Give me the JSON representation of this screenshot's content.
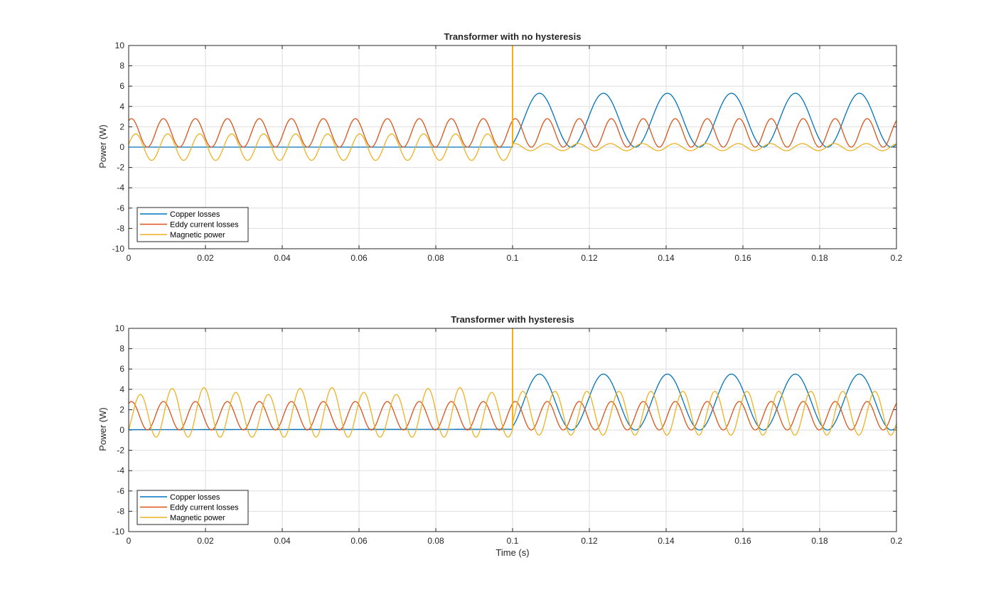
{
  "figure": {
    "background": "#ffffff"
  },
  "chart_data": [
    {
      "type": "line",
      "title": "Transformer with no hysteresis",
      "xlabel": "",
      "ylabel": "Power (W)",
      "xlim": [
        0,
        0.2
      ],
      "ylim": [
        -10,
        10
      ],
      "xticks": [
        "0",
        "0.02",
        "0.04",
        "0.06",
        "0.08",
        "0.1",
        "0.12",
        "0.14",
        "0.16",
        "0.18",
        "0.2"
      ],
      "yticks": [
        "-10",
        "-8",
        "-6",
        "-4",
        "-2",
        "0",
        "2",
        "4",
        "6",
        "8",
        "10"
      ],
      "grid": true,
      "legend_position": "bottom-left",
      "series": [
        {
          "name": "Copper losses",
          "color": "#0072BD",
          "description_values": {
            "t_lt_0.1": 0,
            "t_ge_0.1_min": 0,
            "t_ge_0.1_max": 5.3,
            "frequency_hz": 120
          }
        },
        {
          "name": "Eddy current losses",
          "color": "#D95319",
          "description_values": {
            "min": 0,
            "max": 2.8,
            "frequency_hz": 120
          }
        },
        {
          "name": "Magnetic power",
          "color": "#EDB120",
          "description_values": {
            "t_lt_0.1_min": -1.3,
            "t_lt_0.1_max": 1.3,
            "t_ge_0.1_min": -0.4,
            "t_ge_0.1_max": 0.4,
            "frequency_hz": 120,
            "spike_at": 0.1,
            "spike_peak": 10
          }
        }
      ],
      "legend": [
        "Copper losses",
        "Eddy current losses",
        "Magnetic power"
      ]
    },
    {
      "type": "line",
      "title": "Transformer with hysteresis",
      "xlabel": "Time (s)",
      "ylabel": "Power (W)",
      "xlim": [
        0,
        0.2
      ],
      "ylim": [
        -10,
        10
      ],
      "xticks": [
        "0",
        "0.02",
        "0.04",
        "0.06",
        "0.08",
        "0.1",
        "0.12",
        "0.14",
        "0.16",
        "0.18",
        "0.2"
      ],
      "yticks": [
        "-10",
        "-8",
        "-6",
        "-4",
        "-2",
        "0",
        "2",
        "4",
        "6",
        "8",
        "10"
      ],
      "grid": true,
      "legend_position": "bottom-left",
      "series": [
        {
          "name": "Copper losses",
          "color": "#0072BD",
          "description_values": {
            "t_lt_0.1": 0.05,
            "t_ge_0.1_min": 0,
            "t_ge_0.1_max": 5.5,
            "frequency_hz": 120
          }
        },
        {
          "name": "Eddy current losses",
          "color": "#D95319",
          "description_values": {
            "min": 0,
            "max": 2.8,
            "frequency_hz": 120
          }
        },
        {
          "name": "Magnetic power",
          "color": "#EDB120",
          "description_values": {
            "t_lt_0.1_min": -0.7,
            "t_lt_0.1_max": 4.8,
            "t_ge_0.1_min": -0.5,
            "t_ge_0.1_max": 3.8,
            "frequency_hz": 120,
            "spike_at": 0.1,
            "spike_peak": 10
          }
        }
      ],
      "legend": [
        "Copper losses",
        "Eddy current losses",
        "Magnetic power"
      ]
    }
  ]
}
